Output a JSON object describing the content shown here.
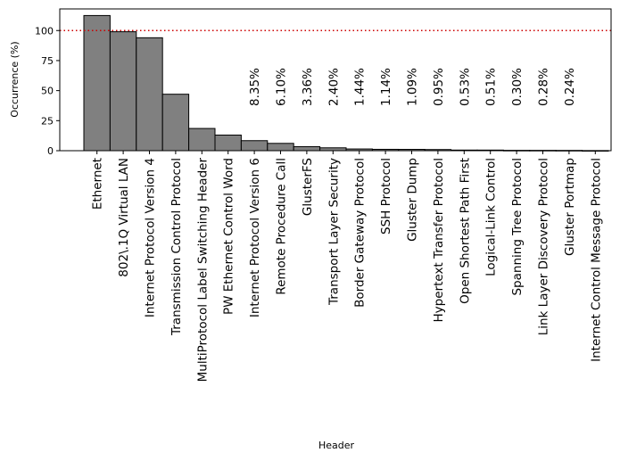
{
  "chart_data": {
    "type": "bar",
    "xlabel": "Header",
    "ylabel": "Occurrence (%)",
    "ylim": [
      0,
      118
    ],
    "yticks": [
      0,
      25,
      50,
      75,
      100
    ],
    "reference_line": {
      "y": 100,
      "color": "#cc0000",
      "style": "dotted"
    },
    "bar_color": "#808080",
    "bar_edge_color": "#000000",
    "categories": [
      "Ethernet",
      "802\\.1Q Virtual LAN",
      "Internet Protocol Version 4",
      "Transmission Control Protocol",
      "MultiProtocol Label Switching Header",
      "PW Ethernet Control Word",
      "Internet Protocol Version 6",
      "Remote Procedure Call",
      "GlusterFS",
      "Transport Layer Security",
      "Border Gateway Protocol",
      "SSH Protocol",
      "Gluster Dump",
      "Hypertext Transfer Protocol",
      "Open Shortest Path First",
      "Logical-Link Control",
      "Spanning Tree Protocol",
      "Link Layer Discovery Protocol",
      "Gluster Portmap",
      "Internet Control Message Protocol"
    ],
    "values": [
      112.5,
      99.0,
      94.0,
      47.0,
      18.5,
      13.0,
      8.35,
      6.1,
      3.36,
      2.4,
      1.44,
      1.14,
      1.09,
      0.95,
      0.53,
      0.51,
      0.3,
      0.28,
      0.24,
      0.1
    ],
    "annotations": [
      {
        "index": 6,
        "text": "8.35%"
      },
      {
        "index": 7,
        "text": "6.10%"
      },
      {
        "index": 8,
        "text": "3.36%"
      },
      {
        "index": 9,
        "text": "2.40%"
      },
      {
        "index": 10,
        "text": "1.44%"
      },
      {
        "index": 11,
        "text": "1.14%"
      },
      {
        "index": 12,
        "text": "1.09%"
      },
      {
        "index": 13,
        "text": "0.95%"
      },
      {
        "index": 14,
        "text": "0.53%"
      },
      {
        "index": 15,
        "text": "0.51%"
      },
      {
        "index": 16,
        "text": "0.30%"
      },
      {
        "index": 17,
        "text": "0.28%"
      },
      {
        "index": 18,
        "text": "0.24%"
      }
    ]
  }
}
